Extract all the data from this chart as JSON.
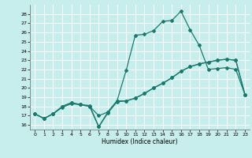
{
  "xlabel": "Humidex (Indice chaleur)",
  "bg_color": "#c8eded",
  "grid_color": "#ffffff",
  "line_color": "#1a7a6e",
  "xlim": [
    -0.5,
    23.5
  ],
  "ylim": [
    15.5,
    29.0
  ],
  "xticks": [
    0,
    1,
    2,
    3,
    4,
    5,
    6,
    7,
    8,
    9,
    10,
    11,
    12,
    13,
    14,
    15,
    16,
    17,
    18,
    19,
    20,
    21,
    22,
    23
  ],
  "yticks": [
    16,
    17,
    18,
    19,
    20,
    21,
    22,
    23,
    24,
    25,
    26,
    27,
    28
  ],
  "line1_x": [
    0,
    1,
    2,
    3,
    4,
    5,
    6,
    7,
    8,
    9,
    10,
    11,
    12,
    13,
    14,
    15,
    16,
    17,
    18,
    19,
    20,
    21,
    22,
    23
  ],
  "line1_y": [
    17.2,
    16.7,
    17.2,
    17.9,
    18.3,
    18.2,
    18.1,
    15.8,
    17.3,
    18.5,
    18.6,
    18.9,
    19.4,
    20.0,
    20.5,
    21.1,
    21.8,
    22.3,
    22.6,
    22.8,
    23.0,
    23.1,
    23.0,
    19.3
  ],
  "line2_x": [
    0,
    1,
    2,
    3,
    4,
    5,
    6,
    7,
    8,
    9,
    10,
    11,
    12,
    13,
    14,
    15,
    16,
    17,
    18,
    19,
    20,
    21,
    22,
    23
  ],
  "line2_y": [
    17.2,
    16.7,
    17.2,
    18.0,
    18.4,
    18.2,
    18.0,
    17.0,
    17.4,
    18.6,
    21.9,
    25.7,
    25.8,
    26.2,
    27.2,
    27.3,
    28.3,
    26.3,
    24.6,
    22.0,
    22.1,
    22.2,
    22.0,
    19.3
  ],
  "line3_x": [
    0,
    1,
    2,
    3,
    4,
    5,
    6,
    7,
    8,
    9,
    10,
    11,
    12,
    13,
    14,
    15,
    16,
    17,
    18,
    19,
    20,
    21,
    22,
    23
  ],
  "line3_y": [
    17.2,
    16.7,
    17.2,
    18.0,
    18.4,
    18.2,
    18.0,
    15.8,
    17.4,
    18.6,
    18.6,
    18.9,
    19.4,
    20.0,
    20.5,
    21.1,
    21.8,
    22.3,
    22.6,
    22.8,
    23.0,
    23.1,
    23.0,
    19.3
  ]
}
